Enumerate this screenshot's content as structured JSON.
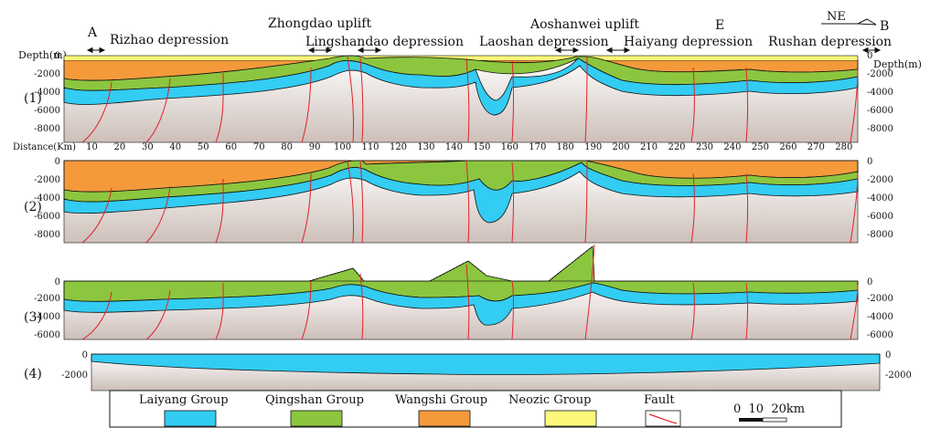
{
  "colors": {
    "laiyang": "#33ccf2",
    "qingshan": "#8cc63f",
    "wangshi": "#f59a3b",
    "neozoic": "#fbf87a",
    "basement_top": "#ffffff",
    "basement_bottom": "#cdbfb9",
    "fault": "#e0202a"
  },
  "header": {
    "point_a": "A",
    "point_b": "B",
    "point_e": "E",
    "orientation": "NE",
    "units": [
      "Rizhao depression",
      "Zhongdao uplift",
      "Lingshandao depression",
      "Laoshan depression",
      "Aoshanwei uplift",
      "Haiyang depression",
      "Rushan depression"
    ]
  },
  "axis": {
    "depth_label_left": "Depth(m)",
    "depth_label_right": "Depth(m)",
    "distance_label": "Distance(Km)",
    "distance_ticks": [
      10,
      20,
      30,
      40,
      50,
      60,
      70,
      80,
      90,
      100,
      110,
      120,
      130,
      140,
      150,
      160,
      170,
      180,
      190,
      200,
      210,
      220,
      230,
      240,
      250,
      260,
      270,
      280
    ]
  },
  "panels": [
    {
      "label": "(1)",
      "depth_ticks": [
        "0",
        "-2000",
        "-4000",
        "-6000",
        "-8000"
      ]
    },
    {
      "label": "(2)",
      "depth_ticks": [
        "0",
        "-2000",
        "-4000",
        "-6000",
        "-8000"
      ]
    },
    {
      "label": "(3)",
      "depth_ticks": [
        "0",
        "-2000",
        "-4000",
        "-6000"
      ]
    },
    {
      "label": "(4)",
      "depth_ticks": [
        "0",
        "-2000"
      ]
    }
  ],
  "legend": {
    "items": [
      "Laiyang Group",
      "Qingshan Group",
      "Wangshi Group",
      "Neozic Group",
      "Fault"
    ],
    "scale_label": "0  10  20km"
  }
}
